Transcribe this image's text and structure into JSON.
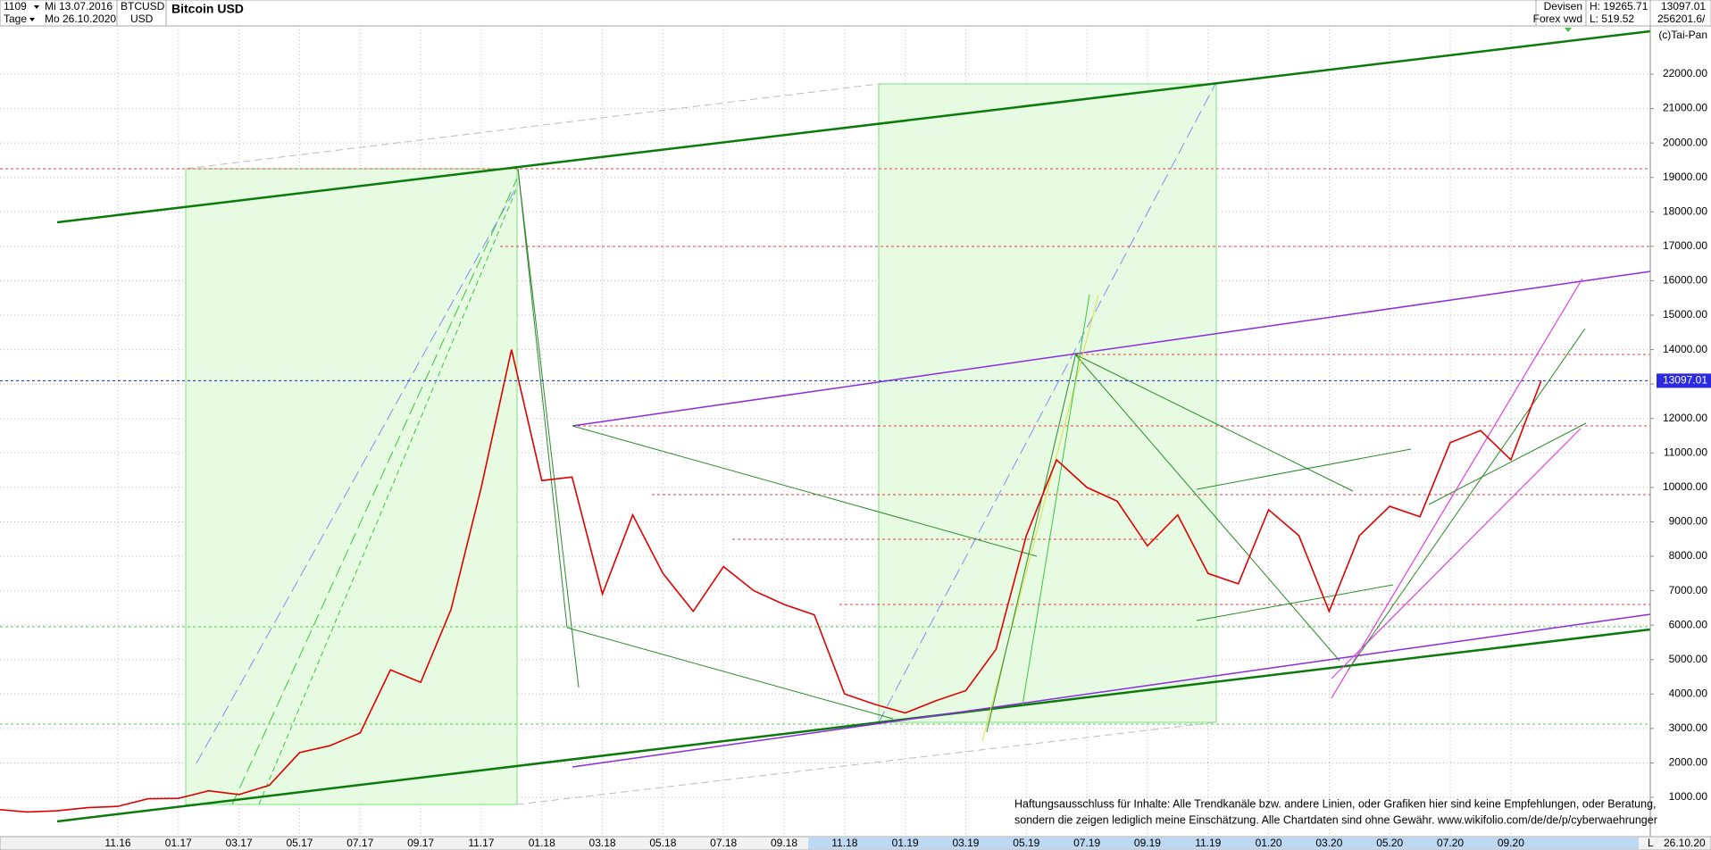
{
  "chart_data": {
    "type": "line",
    "title": "Bitcoin USD",
    "count": "1109",
    "start_date": "Mi 13.07.2016",
    "period": "Tage",
    "end_date": "Mo 26.10.2020",
    "symbol": "BTCUSD",
    "currency": "USD",
    "exchange": "Devisen",
    "source": "Forex vwd",
    "high_label": "H: 19265.71",
    "low_label": "L: 519.52",
    "volume": "256201.6/",
    "copyright": "(c)Tai-Pan",
    "disclaimer": [
      "Haftungsausschluss für Inhalte: Alle Trendkanäle bzw. andere Linien, oder Grafiken hier sind keine Empfehlungen, oder Beratung,",
      "sondern die zeigen lediglich meine  Einschätzung. Alle Chartdaten sind ohne Gewähr.  www.wikifolio.com/de/de/p/cyberwaehrunger"
    ],
    "end_label": "26.10.20",
    "scale_mode": "L",
    "color": "#e00000",
    "categories": [
      null,
      null,
      null,
      null,
      "11.16",
      null,
      "01.17",
      null,
      "03.17",
      null,
      "05.17",
      null,
      "07.17",
      null,
      "09.17",
      null,
      "11.17",
      null,
      "01.18",
      null,
      "03.18",
      null,
      "05.18",
      null,
      "07.18",
      null,
      "09.18",
      null,
      "11.18",
      null,
      "01.19",
      null,
      "03.19",
      null,
      "05.19",
      null,
      "07.19",
      null,
      "09.19",
      null,
      "11.19",
      null,
      "01.20",
      null,
      "03.20",
      null,
      "05.20",
      null,
      "07.20",
      null,
      "09.20",
      null
    ],
    "values": [
      650,
      575,
      610,
      700,
      740,
      960,
      970,
      1190,
      1080,
      1350,
      2300,
      2500,
      2870,
      4700,
      4340,
      6450,
      10000,
      14000,
      10200,
      10300,
      6900,
      9200,
      7500,
      6400,
      7700,
      7000,
      6600,
      6300,
      4000,
      3700,
      3450,
      3800,
      4100,
      5300,
      8600,
      10800,
      10000,
      9600,
      8300,
      9200,
      7500,
      7200,
      9350,
      8600,
      6400,
      8600,
      9450,
      9150,
      11300,
      11650,
      10800,
      13097.01
    ],
    "last_price": {
      "value": 13097.01,
      "label": "13097.01"
    },
    "ylim": [
      -140,
      23400
    ],
    "yticks": [
      {
        "value": 1000,
        "label": "1000.00"
      },
      {
        "value": 2000,
        "label": "2000.00"
      },
      {
        "value": 3000,
        "label": "3000.00"
      },
      {
        "value": 4000,
        "label": "4000.00"
      },
      {
        "value": 5000,
        "label": "5000.00"
      },
      {
        "value": 6000,
        "label": "6000.00"
      },
      {
        "value": 7000,
        "label": "7000.00"
      },
      {
        "value": 8000,
        "label": "8000.00"
      },
      {
        "value": 9000,
        "label": "9000.00"
      },
      {
        "value": 10000,
        "label": "10000.00"
      },
      {
        "value": 11000,
        "label": "11000.00"
      },
      {
        "value": 12000,
        "label": "12000.00"
      },
      {
        "value": 13000,
        "label": "13000.00"
      },
      {
        "value": 14000,
        "label": "14000.00"
      },
      {
        "value": 15000,
        "label": "15000.00"
      },
      {
        "value": 16000,
        "label": "16000.00"
      },
      {
        "value": 17000,
        "label": "17000.00"
      },
      {
        "value": 18000,
        "label": "18000.00"
      },
      {
        "value": 19000,
        "label": "19000.00"
      },
      {
        "value": 20000,
        "label": "20000.00"
      },
      {
        "value": 21000,
        "label": "21000.00"
      },
      {
        "value": 22000,
        "label": "22000.00"
      }
    ],
    "grid": true
  }
}
